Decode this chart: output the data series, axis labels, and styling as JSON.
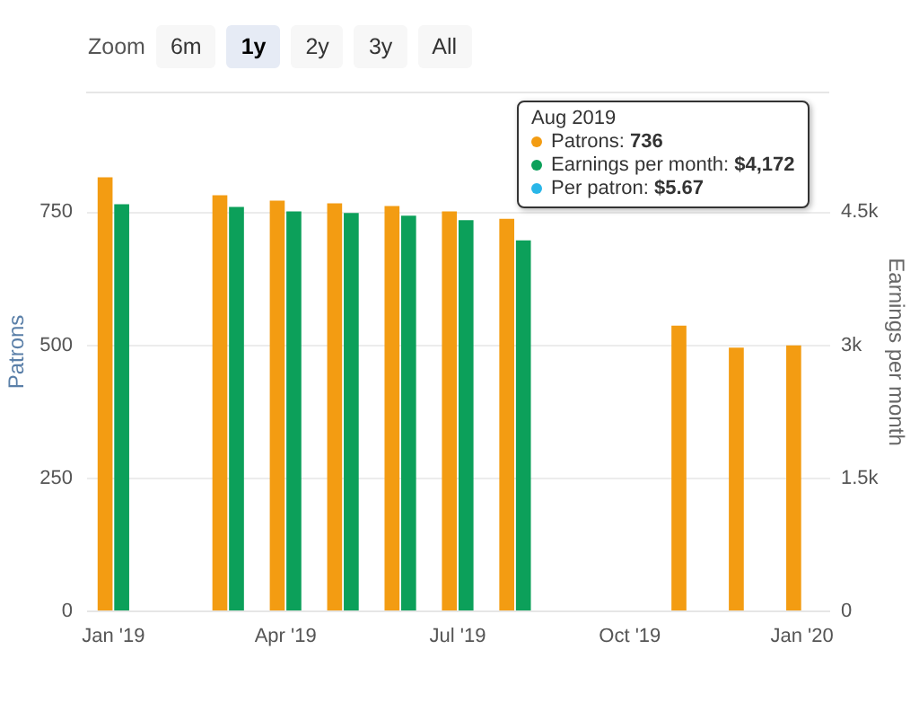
{
  "chart_data": {
    "type": "bar",
    "xlabel": null,
    "ylabel": "Patrons",
    "y2label": "Earnings per month",
    "categories": [
      "Jan '19",
      null,
      null,
      "Apr '19",
      null,
      null,
      "Jul '19",
      null,
      null,
      "Oct '19",
      null,
      null,
      "Jan '20"
    ],
    "series": [
      {
        "color": "#f39c12",
        "values": [
          814,
          null,
          780,
          770,
          765,
          760,
          750,
          736,
          null,
          null,
          535,
          494,
          498
        ]
      },
      {
        "color": "#0ca05a",
        "axis": "y2",
        "values": [
          4580,
          null,
          4550,
          4500,
          4480,
          4450,
          4400,
          4172,
          null,
          null,
          null,
          null,
          null
        ]
      }
    ],
    "ylim": [
      0,
      975
    ],
    "yticks": [
      0,
      250,
      500,
      750
    ],
    "y2lim": [
      0,
      5850
    ],
    "y2ticks": [
      0,
      {
        "value": 1500,
        "label": "1.5k"
      },
      {
        "value": 3000,
        "label": "3k"
      },
      {
        "value": 4500,
        "label": "4.5k"
      }
    ],
    "grid": "y",
    "annotations": [
      "Zoom",
      "6m",
      "1y",
      "2y",
      "3y",
      "All",
      "Aug 2019",
      "Patrons: 736",
      "Earnings per month: $4,172",
      "Per patron: $5.67"
    ]
  }
}
